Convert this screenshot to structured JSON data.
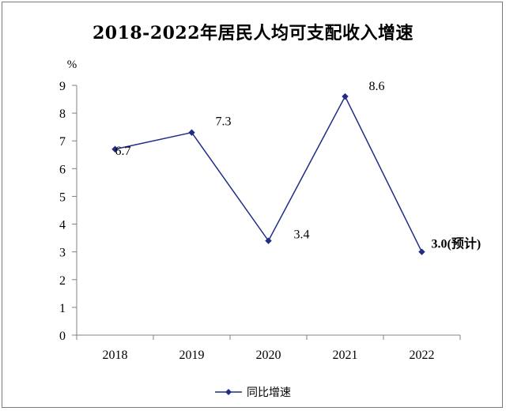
{
  "colors": {
    "series": "#1f2d86",
    "axis": "#808080",
    "text": "#000000"
  },
  "chart_data": {
    "type": "line",
    "title": "2018-2022年居民人均可支配收入增速",
    "ylabel": "%",
    "xlabel": "",
    "categories": [
      "2018",
      "2019",
      "2020",
      "2021",
      "2022"
    ],
    "ylim": [
      0,
      9
    ],
    "yticks": [
      0,
      1,
      2,
      3,
      4,
      5,
      6,
      7,
      8,
      9
    ],
    "grid": false,
    "legend_position": "bottom",
    "series": [
      {
        "name": "同比增速",
        "values": [
          6.7,
          7.3,
          3.4,
          8.6,
          3.0
        ],
        "labels": [
          "6.7",
          "7.3",
          "3.4",
          "8.6",
          "3.0(预计)"
        ]
      }
    ]
  }
}
